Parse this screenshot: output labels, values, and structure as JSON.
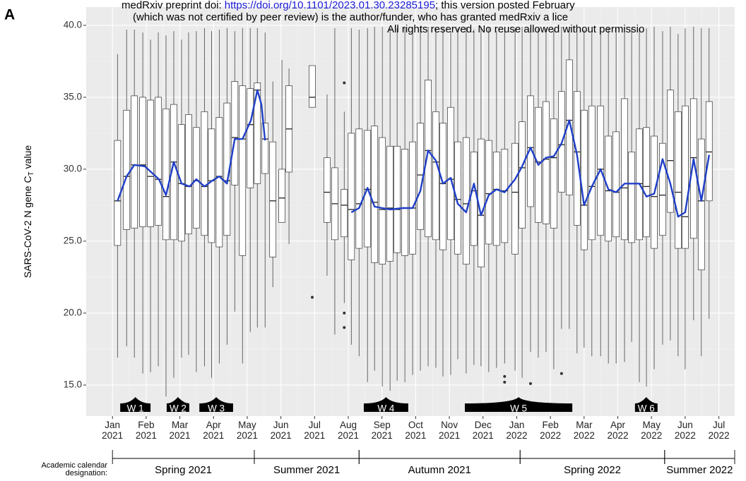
{
  "chart_data": {
    "type": "box",
    "panel_label": "A",
    "ylabel": "SARS-CoV-2 N gene C",
    "ylabel_subscript": "T",
    "ylabel_suffix": "value",
    "ylim": [
      12.84,
      41.27
    ],
    "yticks": [
      {
        "value": 15,
        "label": "15.0"
      },
      {
        "value": 20,
        "label": "20.0"
      },
      {
        "value": 25,
        "label": "25.0"
      },
      {
        "value": 30,
        "label": "30.0"
      },
      {
        "value": 35,
        "label": "35.0"
      },
      {
        "value": 40,
        "label": "40.0"
      }
    ],
    "xlim": [
      -0.78,
      18.47
    ],
    "xticks": [
      {
        "value": 0,
        "label": "Jan 2021"
      },
      {
        "value": 1,
        "label": "Feb 2021"
      },
      {
        "value": 2,
        "label": "Mar 2021"
      },
      {
        "value": 3,
        "label": "Apr 2021"
      },
      {
        "value": 4,
        "label": "May 2021"
      },
      {
        "value": 5,
        "label": "Jun 2021"
      },
      {
        "value": 6,
        "label": "Jul 2021"
      },
      {
        "value": 7,
        "label": "Aug 2021"
      },
      {
        "value": 8,
        "label": "Sep 2021"
      },
      {
        "value": 9,
        "label": "Oct 2021"
      },
      {
        "value": 10,
        "label": "Nov 2021"
      },
      {
        "value": 11,
        "label": "Dec 2021"
      },
      {
        "value": 12,
        "label": "Jan 2022"
      },
      {
        "value": 13,
        "label": "Feb 2022"
      },
      {
        "value": 14,
        "label": "Mar 2022"
      },
      {
        "value": 15,
        "label": "Apr 2022"
      },
      {
        "value": 16,
        "label": "May 2022"
      },
      {
        "value": 17,
        "label": "Jun 2022"
      },
      {
        "value": 18,
        "label": "Jul 2022"
      }
    ],
    "grid": true,
    "boxes": {
      "x": [
        0.15,
        0.42,
        0.65,
        0.9,
        1.13,
        1.36,
        1.59,
        1.82,
        2.05,
        2.26,
        2.49,
        2.73,
        2.94,
        3.17,
        3.4,
        3.63,
        3.86,
        4.09,
        4.3,
        4.53,
        4.76,
        5.03,
        5.24,
        5.93,
        6.37,
        6.6,
        6.88,
        7.09,
        7.32,
        7.57,
        7.78,
        8.01,
        8.24,
        8.45,
        8.68,
        8.91,
        9.14,
        9.37,
        9.6,
        9.81,
        10.04,
        10.25,
        10.5,
        10.73,
        10.94,
        11.17,
        11.4,
        11.64,
        11.95,
        12.16,
        12.41,
        12.64,
        12.87,
        13.1,
        13.33,
        13.56,
        13.79,
        14.0,
        14.23,
        14.49,
        14.72,
        14.95,
        15.2,
        15.41,
        15.64,
        15.85,
        16.08,
        16.33,
        16.56,
        16.79,
        17.0,
        17.25,
        17.48,
        17.71
      ],
      "min": [
        16.9,
        17.7,
        16.9,
        15.8,
        15.9,
        16.3,
        14.2,
        15.5,
        16.9,
        17.1,
        15.9,
        16.3,
        15.5,
        16.5,
        17.8,
        20.1,
        16.5,
        18.7,
        19.0,
        19.0,
        21.8,
        26.3,
        24.8,
        34.3,
        22.6,
        18.5,
        20.7,
        17.8,
        17.0,
        15.2,
        16.0,
        14.9,
        14.6,
        15.3,
        15.2,
        15.7,
        16.0,
        16.3,
        16.2,
        15.6,
        15.7,
        16.8,
        15.8,
        16.4,
        16.3,
        15.9,
        16.2,
        16.5,
        16.0,
        15.5,
        17.3,
        16.9,
        17.3,
        16.1,
        18.9,
        18.9,
        17.2,
        17.6,
        17.0,
        17.0,
        16.5,
        16.5,
        16.6,
        18.0,
        15.2,
        14.9,
        16.1,
        17.8,
        18.1,
        17.0,
        16.1,
        19.5,
        17.0,
        19.6
      ],
      "q1": [
        24.7,
        25.8,
        25.9,
        26.0,
        26.0,
        26.1,
        25.1,
        25.1,
        25.0,
        25.5,
        25.9,
        25.4,
        24.9,
        24.6,
        25.4,
        28.9,
        24.0,
        28.7,
        29.0,
        29.7,
        23.9,
        26.3,
        29.8,
        34.3,
        26.3,
        25.1,
        25.3,
        23.7,
        24.5,
        24.6,
        23.5,
        23.4,
        23.6,
        24.2,
        24.0,
        24.1,
        25.8,
        25.3,
        25.1,
        24.4,
        25.1,
        24.1,
        23.4,
        24.7,
        23.2,
        24.8,
        24.7,
        24.9,
        24.1,
        25.9,
        27.4,
        26.3,
        26.2,
        25.9,
        28.4,
        28.2,
        26.1,
        24.4,
        25.1,
        25.4,
        25.0,
        25.3,
        25.1,
        24.9,
        25.1,
        25.3,
        24.5,
        25.4,
        27.0,
        24.5,
        24.5,
        25.2,
        23.0,
        27.8
      ],
      "median": [
        27.8,
        29.5,
        30.3,
        30.3,
        29.5,
        29.3,
        28.1,
        30.5,
        29.0,
        28.8,
        29.2,
        28.8,
        29.2,
        29.5,
        29.2,
        32.2,
        32.1,
        33.1,
        35.5,
        32.1,
        27.8,
        28.0,
        32.8,
        35.0,
        28.4,
        27.6,
        27.5,
        27.2,
        27.6,
        28.6,
        27.7,
        27.2,
        27.3,
        27.2,
        27.3,
        27.3,
        29.6,
        31.3,
        30.5,
        29.0,
        29.3,
        27.9,
        27.6,
        28.5,
        26.8,
        28.3,
        28.6,
        28.5,
        28.4,
        30.1,
        31.5,
        30.5,
        30.7,
        30.8,
        31.7,
        33.4,
        31.2,
        27.5,
        28.8,
        30.0,
        28.5,
        28.4,
        28.7,
        29.0,
        29.0,
        28.8,
        28.1,
        28.2,
        30.6,
        28.4,
        26.7,
        30.8,
        27.8,
        31.2
      ],
      "q3": [
        32.0,
        34.1,
        35.1,
        35.0,
        34.8,
        35.0,
        34.2,
        34.5,
        33.1,
        33.8,
        32.9,
        34.0,
        32.8,
        33.6,
        34.6,
        36.1,
        35.8,
        35.6,
        36.0,
        33.2,
        31.9,
        30.0,
        35.8,
        37.2,
        30.8,
        30.1,
        28.6,
        32.5,
        32.8,
        32.7,
        33.0,
        32.2,
        31.6,
        31.6,
        31.4,
        31.9,
        33.2,
        36.2,
        34.0,
        33.2,
        34.3,
        31.9,
        32.2,
        31.2,
        32.1,
        32.0,
        31.2,
        31.4,
        31.8,
        33.3,
        35.1,
        34.3,
        34.7,
        33.5,
        35.4,
        37.6,
        35.4,
        34.1,
        34.4,
        34.4,
        32.3,
        32.6,
        34.9,
        31.2,
        32.8,
        32.9,
        32.3,
        31.8,
        35.5,
        34.0,
        34.4,
        34.9,
        32.1,
        34.7
      ],
      "max": [
        38.0,
        39.7,
        39.7,
        39.5,
        39.0,
        39.5,
        39.3,
        39.6,
        39.0,
        39.5,
        39.6,
        39.8,
        39.6,
        39.7,
        39.8,
        39.6,
        39.8,
        39.8,
        39.8,
        39.5,
        36.1,
        37.6,
        37.0,
        37.2,
        35.2,
        39.8,
        34.0,
        39.8,
        39.7,
        39.8,
        39.9,
        39.9,
        39.8,
        39.8,
        39.9,
        39.8,
        39.9,
        39.9,
        39.8,
        39.8,
        39.6,
        39.8,
        39.9,
        39.7,
        39.9,
        39.9,
        39.6,
        39.8,
        39.8,
        39.9,
        39.8,
        39.8,
        39.8,
        39.7,
        39.9,
        39.9,
        39.5,
        39.7,
        39.5,
        39.5,
        39.8,
        39.8,
        39.9,
        39.8,
        39.8,
        39.8,
        39.9,
        39.6,
        39.9,
        39.4,
        39.8,
        39.9,
        39.8,
        39.8
      ]
    },
    "outliers": {
      "x": [
        5.93,
        6.88,
        6.88,
        6.88,
        11.64,
        11.64,
        12.41,
        13.33
      ],
      "y": [
        21.1,
        36.0,
        20.0,
        19.0,
        15.6,
        15.2,
        15.1,
        15.8
      ]
    },
    "trend": {
      "color": "#1f3fc8",
      "x": [
        0.15,
        0.42,
        0.65,
        0.96,
        1.38,
        1.59,
        1.82,
        2.05,
        2.29,
        2.49,
        2.73,
        2.96,
        3.17,
        3.4,
        3.63,
        3.86,
        4.11,
        4.3,
        4.42,
        4.53,
        5.5,
        7.09,
        7.32,
        7.57,
        7.78,
        8.24,
        8.62,
        8.91,
        9.14,
        9.37,
        9.6,
        9.81,
        10.04,
        10.25,
        10.5,
        10.73,
        10.94,
        11.17,
        11.4,
        11.64,
        11.95,
        12.16,
        12.41,
        12.64,
        12.87,
        13.1,
        13.33,
        13.56,
        13.79,
        14.0,
        14.23,
        14.49,
        14.72,
        14.95,
        15.2,
        15.41,
        15.64,
        15.85,
        16.08,
        16.33,
        16.56,
        16.79,
        17.0,
        17.25,
        17.48,
        17.71
      ],
      "y": [
        27.8,
        29.5,
        30.3,
        30.2,
        29.3,
        28.2,
        30.5,
        29.0,
        28.8,
        29.3,
        28.8,
        29.2,
        29.5,
        29.0,
        32.1,
        32.1,
        33.4,
        35.5,
        34.5,
        32.0,
        null,
        27.0,
        27.3,
        28.7,
        27.4,
        27.2,
        27.3,
        27.3,
        28.5,
        31.3,
        30.6,
        29.0,
        29.4,
        27.6,
        27.0,
        29.0,
        26.8,
        28.2,
        28.6,
        28.4,
        29.3,
        30.2,
        31.5,
        30.3,
        30.8,
        30.9,
        31.8,
        33.4,
        31.0,
        27.5,
        28.8,
        30.0,
        28.6,
        28.4,
        29.0,
        29.0,
        29.0,
        28.1,
        28.3,
        30.7,
        29.0,
        26.7,
        27.0,
        30.7,
        27.8,
        31.0
      ]
    },
    "waves": [
      {
        "label": "W 1",
        "start": 0.23,
        "end": 1.13
      },
      {
        "label": "W 2",
        "start": 1.61,
        "end": 2.28
      },
      {
        "label": "W 3",
        "start": 2.58,
        "end": 3.58
      },
      {
        "label": "W 4",
        "start": 7.46,
        "end": 8.78
      },
      {
        "label": "W 5",
        "start": 10.46,
        "end": 13.65
      },
      {
        "label": "W 6",
        "start": 15.51,
        "end": 16.18
      }
    ],
    "calendar_title": "Academic calendar designation:",
    "calendar": [
      {
        "label": "Spring 2021",
        "start": 0,
        "end": 4.21
      },
      {
        "label": "Summer 2021",
        "start": 4.21,
        "end": 7.32
      },
      {
        "label": "Autumn 2021",
        "start": 7.32,
        "end": 12.1
      },
      {
        "label": "Spring 2022",
        "start": 12.1,
        "end": 16.39
      },
      {
        "label": "Summer 2022",
        "start": 16.39,
        "end": 18.47
      }
    ],
    "watermark": {
      "line1_prefix": "medRxiv preprint doi:",
      "doi_link": "https://doi.org/10.1101/2023.01.30.23285195",
      "line1_suffix": "; this version posted February",
      "line2": "(which was not certified by peer review) is the author/funder, who has granted medRxiv a lice",
      "line3": "All rights reserved. No reuse allowed without permissio"
    }
  }
}
